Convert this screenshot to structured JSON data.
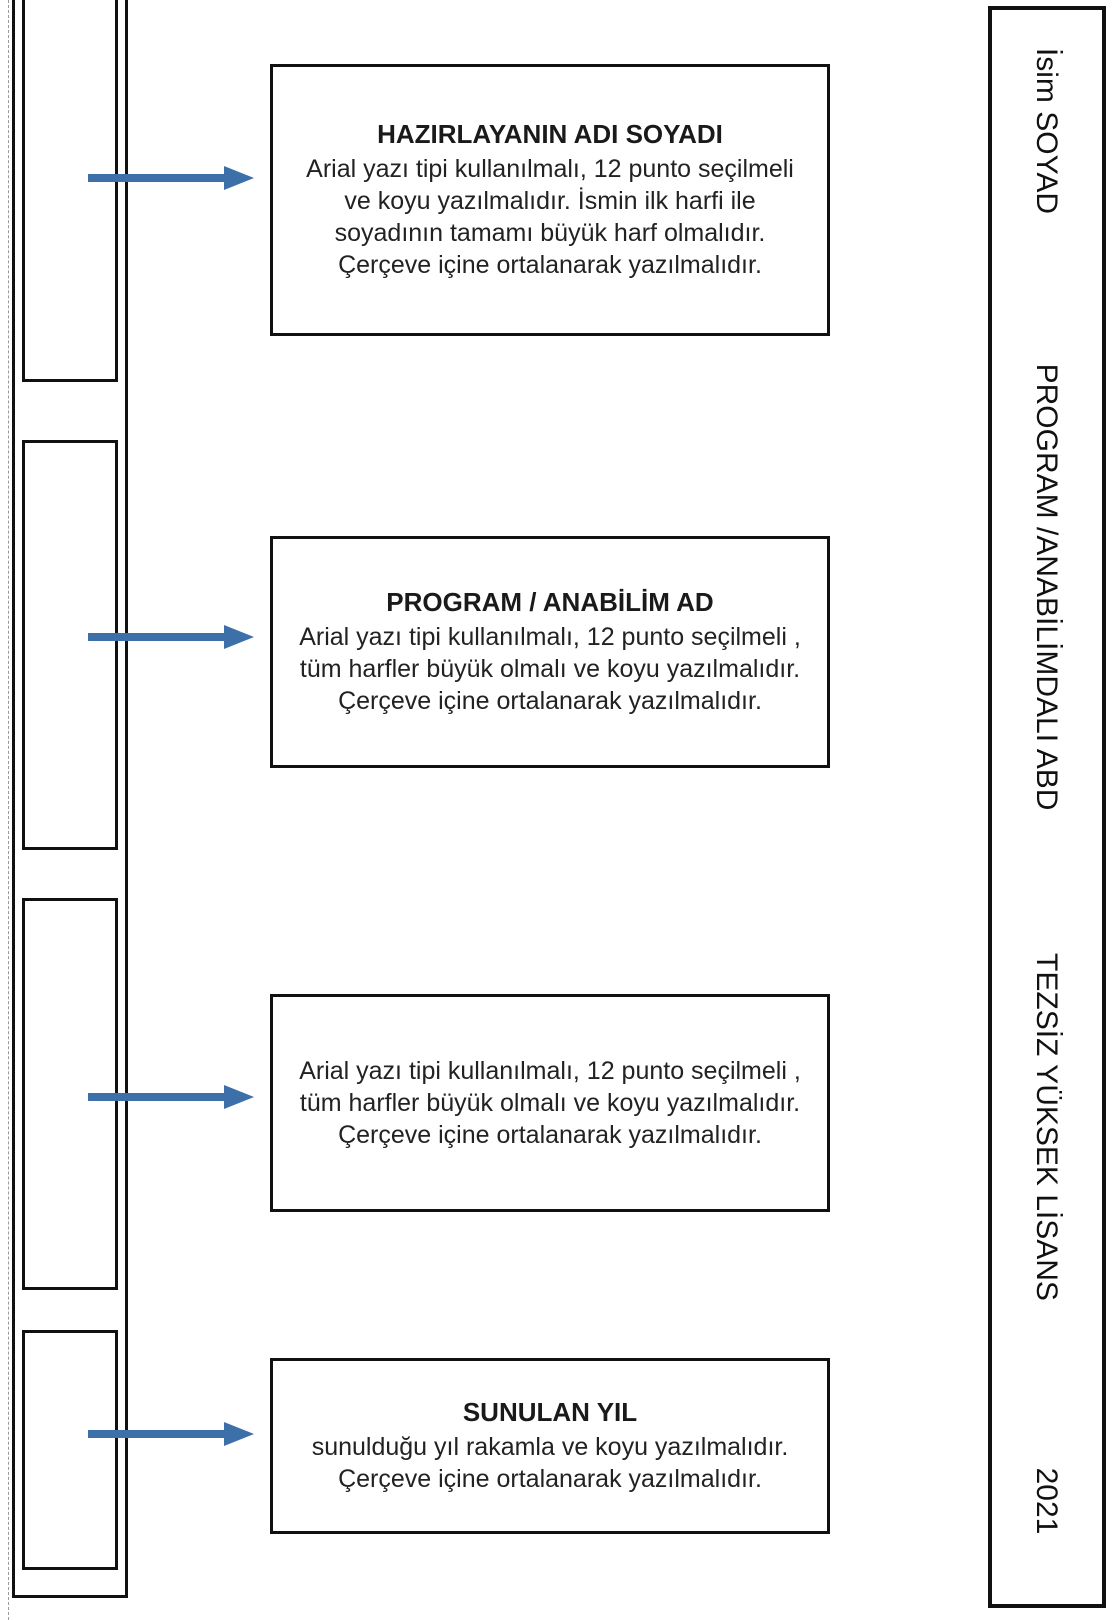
{
  "boxes": [
    {
      "title": "HAZIRLAYANIN ADI SOYADI",
      "text": "Arial yazı tipi kullanılmalı, 12 punto seçilmeli ve koyu yazılmalıdır. İsmin ilk harfi ile soyadının tamamı büyük harf olmalıdır. Çerçeve içine ortalanarak yazılmalıdır."
    },
    {
      "title": "PROGRAM / ANABİLİM AD",
      "text": "Arial yazı tipi kullanılmalı, 12 punto seçilmeli , tüm harfler büyük olmalı ve koyu yazılmalıdır. Çerçeve içine ortalanarak yazılmalıdır."
    },
    {
      "title": "",
      "text": "Arial yazı tipi kullanılmalı, 12 punto seçilmeli , tüm harfler büyük olmalı ve koyu yazılmalıdır. Çerçeve içine ortalanarak yazılmalıdır."
    },
    {
      "title": "SUNULAN YIL",
      "text": "sunulduğu yıl rakamla ve koyu yazılmalıdır. Çerçeve içine ortalanarak yazılmalıdır."
    }
  ],
  "spine": {
    "name": "İsim SOYAD",
    "program": "PROGRAM /ANABİLİMDALI ABD",
    "degree": "TEZSİZ YÜKSEK LİSANS",
    "year": "2021"
  },
  "colors": {
    "arrow": "#3d6fa8",
    "border": "#111111"
  }
}
